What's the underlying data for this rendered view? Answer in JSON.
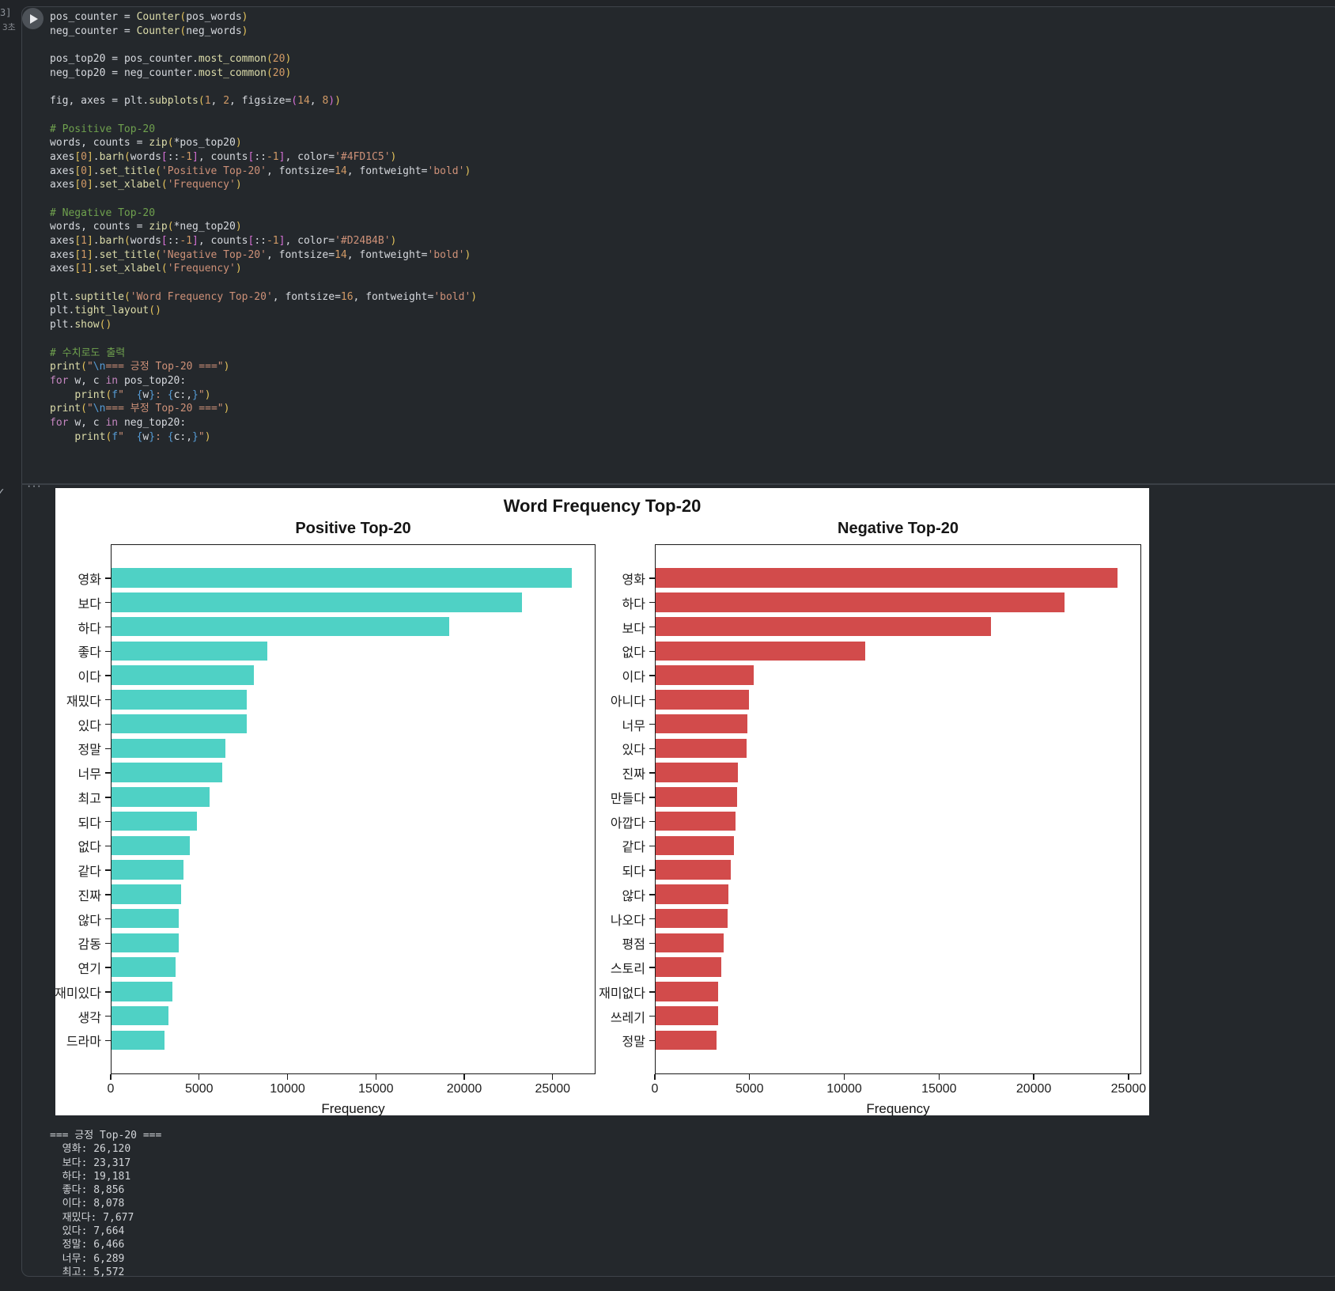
{
  "gutter": {
    "execution_count": "3]",
    "execution_time": "3초",
    "status_check": "✓",
    "output_menu": "···"
  },
  "code": {
    "lines": [
      [
        [
          "v",
          "pos_counter"
        ],
        [
          "d",
          " = "
        ],
        [
          "f",
          "Counter"
        ],
        [
          "b1",
          "("
        ],
        [
          "v",
          "pos_words"
        ],
        [
          "b1",
          ")"
        ]
      ],
      [
        [
          "v",
          "neg_counter"
        ],
        [
          "d",
          " = "
        ],
        [
          "f",
          "Counter"
        ],
        [
          "b1",
          "("
        ],
        [
          "v",
          "neg_words"
        ],
        [
          "b1",
          ")"
        ]
      ],
      [],
      [
        [
          "v",
          "pos_top20"
        ],
        [
          "d",
          " = "
        ],
        [
          "v",
          "pos_counter"
        ],
        [
          "d",
          "."
        ],
        [
          "f",
          "most_common"
        ],
        [
          "b1",
          "("
        ],
        [
          "n",
          "20"
        ],
        [
          "b1",
          ")"
        ]
      ],
      [
        [
          "v",
          "neg_top20"
        ],
        [
          "d",
          " = "
        ],
        [
          "v",
          "neg_counter"
        ],
        [
          "d",
          "."
        ],
        [
          "f",
          "most_common"
        ],
        [
          "b1",
          "("
        ],
        [
          "n",
          "20"
        ],
        [
          "b1",
          ")"
        ]
      ],
      [],
      [
        [
          "v",
          "fig"
        ],
        [
          "d",
          ", "
        ],
        [
          "v",
          "axes"
        ],
        [
          "d",
          " = "
        ],
        [
          "v",
          "plt"
        ],
        [
          "d",
          "."
        ],
        [
          "f",
          "subplots"
        ],
        [
          "b1",
          "("
        ],
        [
          "n",
          "1"
        ],
        [
          "d",
          ", "
        ],
        [
          "n",
          "2"
        ],
        [
          "d",
          ", "
        ],
        [
          "v",
          "figsize"
        ],
        [
          "d",
          "="
        ],
        [
          "b2",
          "("
        ],
        [
          "n",
          "14"
        ],
        [
          "d",
          ", "
        ],
        [
          "n",
          "8"
        ],
        [
          "b2",
          ")"
        ],
        [
          "b1",
          ")"
        ]
      ],
      [],
      [
        [
          "c",
          "# Positive Top-20"
        ]
      ],
      [
        [
          "v",
          "words"
        ],
        [
          "d",
          ", "
        ],
        [
          "v",
          "counts"
        ],
        [
          "d",
          " = "
        ],
        [
          "f",
          "zip"
        ],
        [
          "b1",
          "("
        ],
        [
          "d",
          "*"
        ],
        [
          "v",
          "pos_top20"
        ],
        [
          "b1",
          ")"
        ]
      ],
      [
        [
          "v",
          "axes"
        ],
        [
          "b1",
          "["
        ],
        [
          "n",
          "0"
        ],
        [
          "b1",
          "]"
        ],
        [
          "d",
          "."
        ],
        [
          "f",
          "barh"
        ],
        [
          "b1",
          "("
        ],
        [
          "v",
          "words"
        ],
        [
          "b2",
          "["
        ],
        [
          "d",
          "::"
        ],
        [
          "n",
          "-1"
        ],
        [
          "b2",
          "]"
        ],
        [
          "d",
          ", "
        ],
        [
          "v",
          "counts"
        ],
        [
          "b2",
          "["
        ],
        [
          "d",
          "::"
        ],
        [
          "n",
          "-1"
        ],
        [
          "b2",
          "]"
        ],
        [
          "d",
          ", "
        ],
        [
          "v",
          "color"
        ],
        [
          "d",
          "="
        ],
        [
          "s",
          "'#4FD1C5'"
        ],
        [
          "b1",
          ")"
        ]
      ],
      [
        [
          "v",
          "axes"
        ],
        [
          "b1",
          "["
        ],
        [
          "n",
          "0"
        ],
        [
          "b1",
          "]"
        ],
        [
          "d",
          "."
        ],
        [
          "f",
          "set_title"
        ],
        [
          "b1",
          "("
        ],
        [
          "s",
          "'Positive Top-20'"
        ],
        [
          "d",
          ", "
        ],
        [
          "v",
          "fontsize"
        ],
        [
          "d",
          "="
        ],
        [
          "n",
          "14"
        ],
        [
          "d",
          ", "
        ],
        [
          "v",
          "fontweight"
        ],
        [
          "d",
          "="
        ],
        [
          "s",
          "'bold'"
        ],
        [
          "b1",
          ")"
        ]
      ],
      [
        [
          "v",
          "axes"
        ],
        [
          "b1",
          "["
        ],
        [
          "n",
          "0"
        ],
        [
          "b1",
          "]"
        ],
        [
          "d",
          "."
        ],
        [
          "f",
          "set_xlabel"
        ],
        [
          "b1",
          "("
        ],
        [
          "s",
          "'Frequency'"
        ],
        [
          "b1",
          ")"
        ]
      ],
      [],
      [
        [
          "c",
          "# Negative Top-20"
        ]
      ],
      [
        [
          "v",
          "words"
        ],
        [
          "d",
          ", "
        ],
        [
          "v",
          "counts"
        ],
        [
          "d",
          " = "
        ],
        [
          "f",
          "zip"
        ],
        [
          "b1",
          "("
        ],
        [
          "d",
          "*"
        ],
        [
          "v",
          "neg_top20"
        ],
        [
          "b1",
          ")"
        ]
      ],
      [
        [
          "v",
          "axes"
        ],
        [
          "b1",
          "["
        ],
        [
          "n",
          "1"
        ],
        [
          "b1",
          "]"
        ],
        [
          "d",
          "."
        ],
        [
          "f",
          "barh"
        ],
        [
          "b1",
          "("
        ],
        [
          "v",
          "words"
        ],
        [
          "b2",
          "["
        ],
        [
          "d",
          "::"
        ],
        [
          "n",
          "-1"
        ],
        [
          "b2",
          "]"
        ],
        [
          "d",
          ", "
        ],
        [
          "v",
          "counts"
        ],
        [
          "b2",
          "["
        ],
        [
          "d",
          "::"
        ],
        [
          "n",
          "-1"
        ],
        [
          "b2",
          "]"
        ],
        [
          "d",
          ", "
        ],
        [
          "v",
          "color"
        ],
        [
          "d",
          "="
        ],
        [
          "s",
          "'#D24B4B'"
        ],
        [
          "b1",
          ")"
        ]
      ],
      [
        [
          "v",
          "axes"
        ],
        [
          "b1",
          "["
        ],
        [
          "n",
          "1"
        ],
        [
          "b1",
          "]"
        ],
        [
          "d",
          "."
        ],
        [
          "f",
          "set_title"
        ],
        [
          "b1",
          "("
        ],
        [
          "s",
          "'Negative Top-20'"
        ],
        [
          "d",
          ", "
        ],
        [
          "v",
          "fontsize"
        ],
        [
          "d",
          "="
        ],
        [
          "n",
          "14"
        ],
        [
          "d",
          ", "
        ],
        [
          "v",
          "fontweight"
        ],
        [
          "d",
          "="
        ],
        [
          "s",
          "'bold'"
        ],
        [
          "b1",
          ")"
        ]
      ],
      [
        [
          "v",
          "axes"
        ],
        [
          "b1",
          "["
        ],
        [
          "n",
          "1"
        ],
        [
          "b1",
          "]"
        ],
        [
          "d",
          "."
        ],
        [
          "f",
          "set_xlabel"
        ],
        [
          "b1",
          "("
        ],
        [
          "s",
          "'Frequency'"
        ],
        [
          "b1",
          ")"
        ]
      ],
      [],
      [
        [
          "v",
          "plt"
        ],
        [
          "d",
          "."
        ],
        [
          "f",
          "suptitle"
        ],
        [
          "b1",
          "("
        ],
        [
          "s",
          "'Word Frequency Top-20'"
        ],
        [
          "d",
          ", "
        ],
        [
          "v",
          "fontsize"
        ],
        [
          "d",
          "="
        ],
        [
          "n",
          "16"
        ],
        [
          "d",
          ", "
        ],
        [
          "v",
          "fontweight"
        ],
        [
          "d",
          "="
        ],
        [
          "s",
          "'bold'"
        ],
        [
          "b1",
          ")"
        ]
      ],
      [
        [
          "v",
          "plt"
        ],
        [
          "d",
          "."
        ],
        [
          "f",
          "tight_layout"
        ],
        [
          "b1",
          "("
        ],
        [
          "b1",
          ")"
        ]
      ],
      [
        [
          "v",
          "plt"
        ],
        [
          "d",
          "."
        ],
        [
          "f",
          "show"
        ],
        [
          "b1",
          "("
        ],
        [
          "b1",
          ")"
        ]
      ],
      [],
      [
        [
          "c",
          "# 수치로도 출력"
        ]
      ],
      [
        [
          "f",
          "print"
        ],
        [
          "b1",
          "("
        ],
        [
          "s",
          "\""
        ],
        [
          "e",
          "\\n"
        ],
        [
          "s",
          "=== 긍정 Top-20 ===\""
        ],
        [
          "b1",
          ")"
        ]
      ],
      [
        [
          "k",
          "for"
        ],
        [
          "d",
          " "
        ],
        [
          "v",
          "w"
        ],
        [
          "d",
          ", "
        ],
        [
          "v",
          "c"
        ],
        [
          "d",
          " "
        ],
        [
          "k",
          "in"
        ],
        [
          "d",
          " "
        ],
        [
          "v",
          "pos_top20"
        ],
        [
          "d",
          ":"
        ]
      ],
      [
        [
          "d",
          "    "
        ],
        [
          "f",
          "print"
        ],
        [
          "b1",
          "("
        ],
        [
          "e",
          "f"
        ],
        [
          "s",
          "\"  "
        ],
        [
          "e",
          "{"
        ],
        [
          "v",
          "w"
        ],
        [
          "e",
          "}"
        ],
        [
          "s",
          ": "
        ],
        [
          "e",
          "{"
        ],
        [
          "v",
          "c"
        ],
        [
          "d",
          ":,"
        ],
        [
          "e",
          "}"
        ],
        [
          "s",
          "\""
        ],
        [
          "b1",
          ")"
        ]
      ],
      [
        [
          "f",
          "print"
        ],
        [
          "b1",
          "("
        ],
        [
          "s",
          "\""
        ],
        [
          "e",
          "\\n"
        ],
        [
          "s",
          "=== 부정 Top-20 ===\""
        ],
        [
          "b1",
          ")"
        ]
      ],
      [
        [
          "k",
          "for"
        ],
        [
          "d",
          " "
        ],
        [
          "v",
          "w"
        ],
        [
          "d",
          ", "
        ],
        [
          "v",
          "c"
        ],
        [
          "d",
          " "
        ],
        [
          "k",
          "in"
        ],
        [
          "d",
          " "
        ],
        [
          "v",
          "neg_top20"
        ],
        [
          "d",
          ":"
        ]
      ],
      [
        [
          "d",
          "    "
        ],
        [
          "f",
          "print"
        ],
        [
          "b1",
          "("
        ],
        [
          "e",
          "f"
        ],
        [
          "s",
          "\"  "
        ],
        [
          "e",
          "{"
        ],
        [
          "v",
          "w"
        ],
        [
          "e",
          "}"
        ],
        [
          "s",
          ": "
        ],
        [
          "e",
          "{"
        ],
        [
          "v",
          "c"
        ],
        [
          "d",
          ":,"
        ],
        [
          "e",
          "}"
        ],
        [
          "s",
          "\""
        ],
        [
          "b1",
          ")"
        ]
      ]
    ]
  },
  "chart": {
    "suptitle": "Word Frequency Top-20"
  },
  "chart_data": [
    {
      "type": "bar",
      "orientation": "horizontal",
      "title": "Positive Top-20",
      "xlabel": "Frequency",
      "color": "#4FD1C5",
      "categories": [
        "영화",
        "보다",
        "하다",
        "좋다",
        "이다",
        "재밌다",
        "있다",
        "정말",
        "너무",
        "최고",
        "되다",
        "없다",
        "같다",
        "진짜",
        "않다",
        "감동",
        "연기",
        "재미있다",
        "생각",
        "드라마"
      ],
      "values": [
        26120,
        23317,
        19181,
        8856,
        8078,
        7677,
        7664,
        6466,
        6289,
        5572,
        4830,
        4430,
        4070,
        3940,
        3800,
        3800,
        3620,
        3450,
        3220,
        3000
      ],
      "xlim": [
        0,
        27426
      ],
      "xticks": [
        0,
        5000,
        10000,
        15000,
        20000,
        25000
      ],
      "grid": false,
      "legend": null
    },
    {
      "type": "bar",
      "orientation": "horizontal",
      "title": "Negative Top-20",
      "xlabel": "Frequency",
      "color": "#D24B4B",
      "categories": [
        "영화",
        "하다",
        "보다",
        "없다",
        "이다",
        "아니다",
        "너무",
        "있다",
        "진짜",
        "만들다",
        "아깝다",
        "같다",
        "되다",
        "않다",
        "나오다",
        "평점",
        "스토리",
        "재미없다",
        "쓰레기",
        "정말"
      ],
      "values": [
        24450,
        21650,
        17750,
        11100,
        5190,
        4940,
        4850,
        4810,
        4350,
        4310,
        4220,
        4140,
        3970,
        3850,
        3810,
        3600,
        3470,
        3300,
        3300,
        3220
      ],
      "xlim": [
        0,
        25672
      ],
      "xticks": [
        0,
        5000,
        10000,
        15000,
        20000,
        25000
      ],
      "grid": false,
      "legend": null
    }
  ],
  "stdout": {
    "lines": [
      "=== 긍정 Top-20 ===",
      "  영화: 26,120",
      "  보다: 23,317",
      "  하다: 19,181",
      "  좋다: 8,856",
      "  이다: 8,078",
      "  재밌다: 7,677",
      "  있다: 7,664",
      "  정말: 6,466",
      "  너무: 6,289",
      "  최고: 5,572"
    ]
  }
}
